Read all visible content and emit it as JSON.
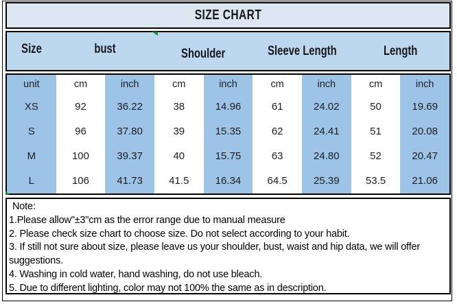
{
  "title": "SIZE CHART",
  "colors": {
    "title_bg": "#dce6f1",
    "header_bg": "#bdd7ee",
    "col_blue": "#9dc3e6",
    "col_white": "#ffffff",
    "border": "#000000",
    "flag_green": "#17892c"
  },
  "header_groups": [
    {
      "label": "Size",
      "span": 1
    },
    {
      "label": "bust",
      "span": 2
    },
    {
      "label": "Shoulder",
      "span": 2
    },
    {
      "label": "Sleeve Length",
      "span": 2
    },
    {
      "label": "Length",
      "span": 2
    }
  ],
  "unit_row": [
    "unit",
    "cm",
    "inch",
    "cm",
    "inch",
    "cm",
    "inch",
    "cm",
    "inch"
  ],
  "rows": [
    {
      "size": "XS",
      "values": [
        "92",
        "36.22",
        "38",
        "14.96",
        "61",
        "24.02",
        "50",
        "19.69"
      ]
    },
    {
      "size": "S",
      "values": [
        "96",
        "37.80",
        "39",
        "15.35",
        "62",
        "24.41",
        "51",
        "20.08"
      ]
    },
    {
      "size": "M",
      "values": [
        "100",
        "39.37",
        "40",
        "15.75",
        "63",
        "24.80",
        "52",
        "20.47"
      ]
    },
    {
      "size": "L",
      "values": [
        "106",
        "41.73",
        "41.5",
        "16.34",
        "64.5",
        "25.39",
        "53.5",
        "21.06"
      ]
    }
  ],
  "notes": {
    "heading": "Note:",
    "items": [
      "1.Please allow\"±3\"cm as the error range due to manual measure",
      "2. Please check size chart to choose size. Do not select according to your habit.",
      "3. If still not sure about size, please leave us your shoulder, bust, waist and hip data, we will offer suggestions.",
      "4. Washing in cold water, hand washing, do not use bleach.",
      "5. Due to different lighting, color may not 100% the same as in description."
    ]
  },
  "chart_data": {
    "type": "table",
    "title": "SIZE CHART",
    "column_groups": [
      "Size",
      "bust",
      "Shoulder",
      "Sleeve Length",
      "Length"
    ],
    "columns": [
      "unit",
      "bust cm",
      "bust inch",
      "Shoulder cm",
      "Shoulder inch",
      "Sleeve Length cm",
      "Sleeve Length inch",
      "Length cm",
      "Length inch"
    ],
    "rows": [
      [
        "XS",
        92,
        36.22,
        38,
        14.96,
        61,
        24.02,
        50,
        19.69
      ],
      [
        "S",
        96,
        37.8,
        39,
        15.35,
        62,
        24.41,
        51,
        20.08
      ],
      [
        "M",
        100,
        39.37,
        40,
        15.75,
        63,
        24.8,
        52,
        20.47
      ],
      [
        "L",
        106,
        41.73,
        41.5,
        16.34,
        64.5,
        25.39,
        53.5,
        21.06
      ]
    ]
  }
}
